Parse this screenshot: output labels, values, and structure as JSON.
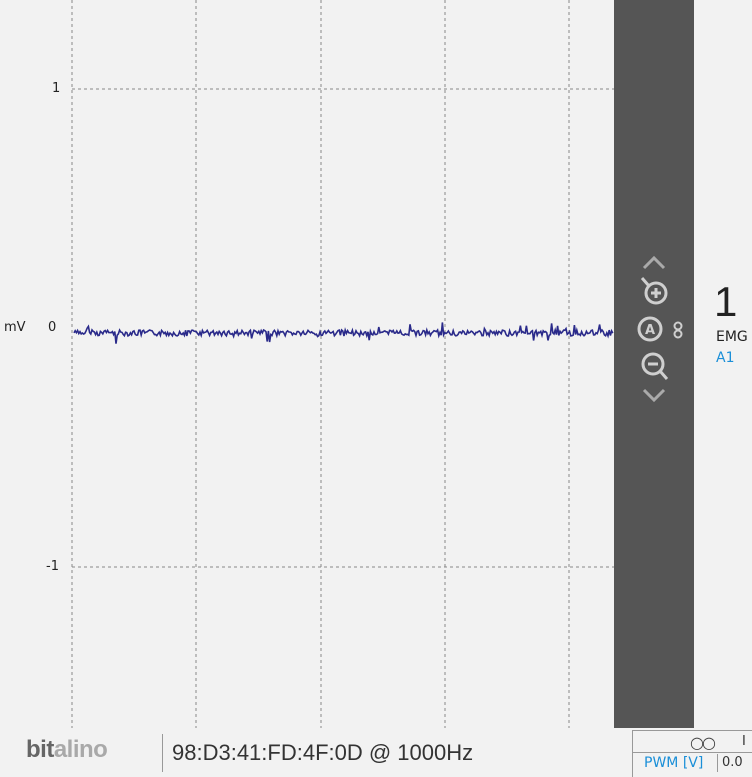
{
  "plot": {
    "unit": "mV",
    "y_ticks": [
      "1",
      "0",
      "-1"
    ],
    "signal_color": "#2a2a8a"
  },
  "side_panel": {
    "controls": [
      "chevron-up-icon",
      "zoom-in-icon",
      "auto-scale-icon",
      "link-icon",
      "zoom-out-icon",
      "chevron-down-icon"
    ]
  },
  "channel": {
    "number": "1",
    "type": "EMG",
    "port": "A1"
  },
  "status_bar": {
    "logo_part1": "bit",
    "logo_part2": "alino",
    "device": "98:D3:41:FD:4F:0D @ 1000Hz",
    "io_label": "I",
    "pwm_label": "PWM [V]",
    "pwm_value": "0.0"
  },
  "colors": {
    "background": "#f2f2f2",
    "side_panel": "#555555",
    "accent": "#1a8fd8",
    "signal": "#2a2a8a"
  }
}
